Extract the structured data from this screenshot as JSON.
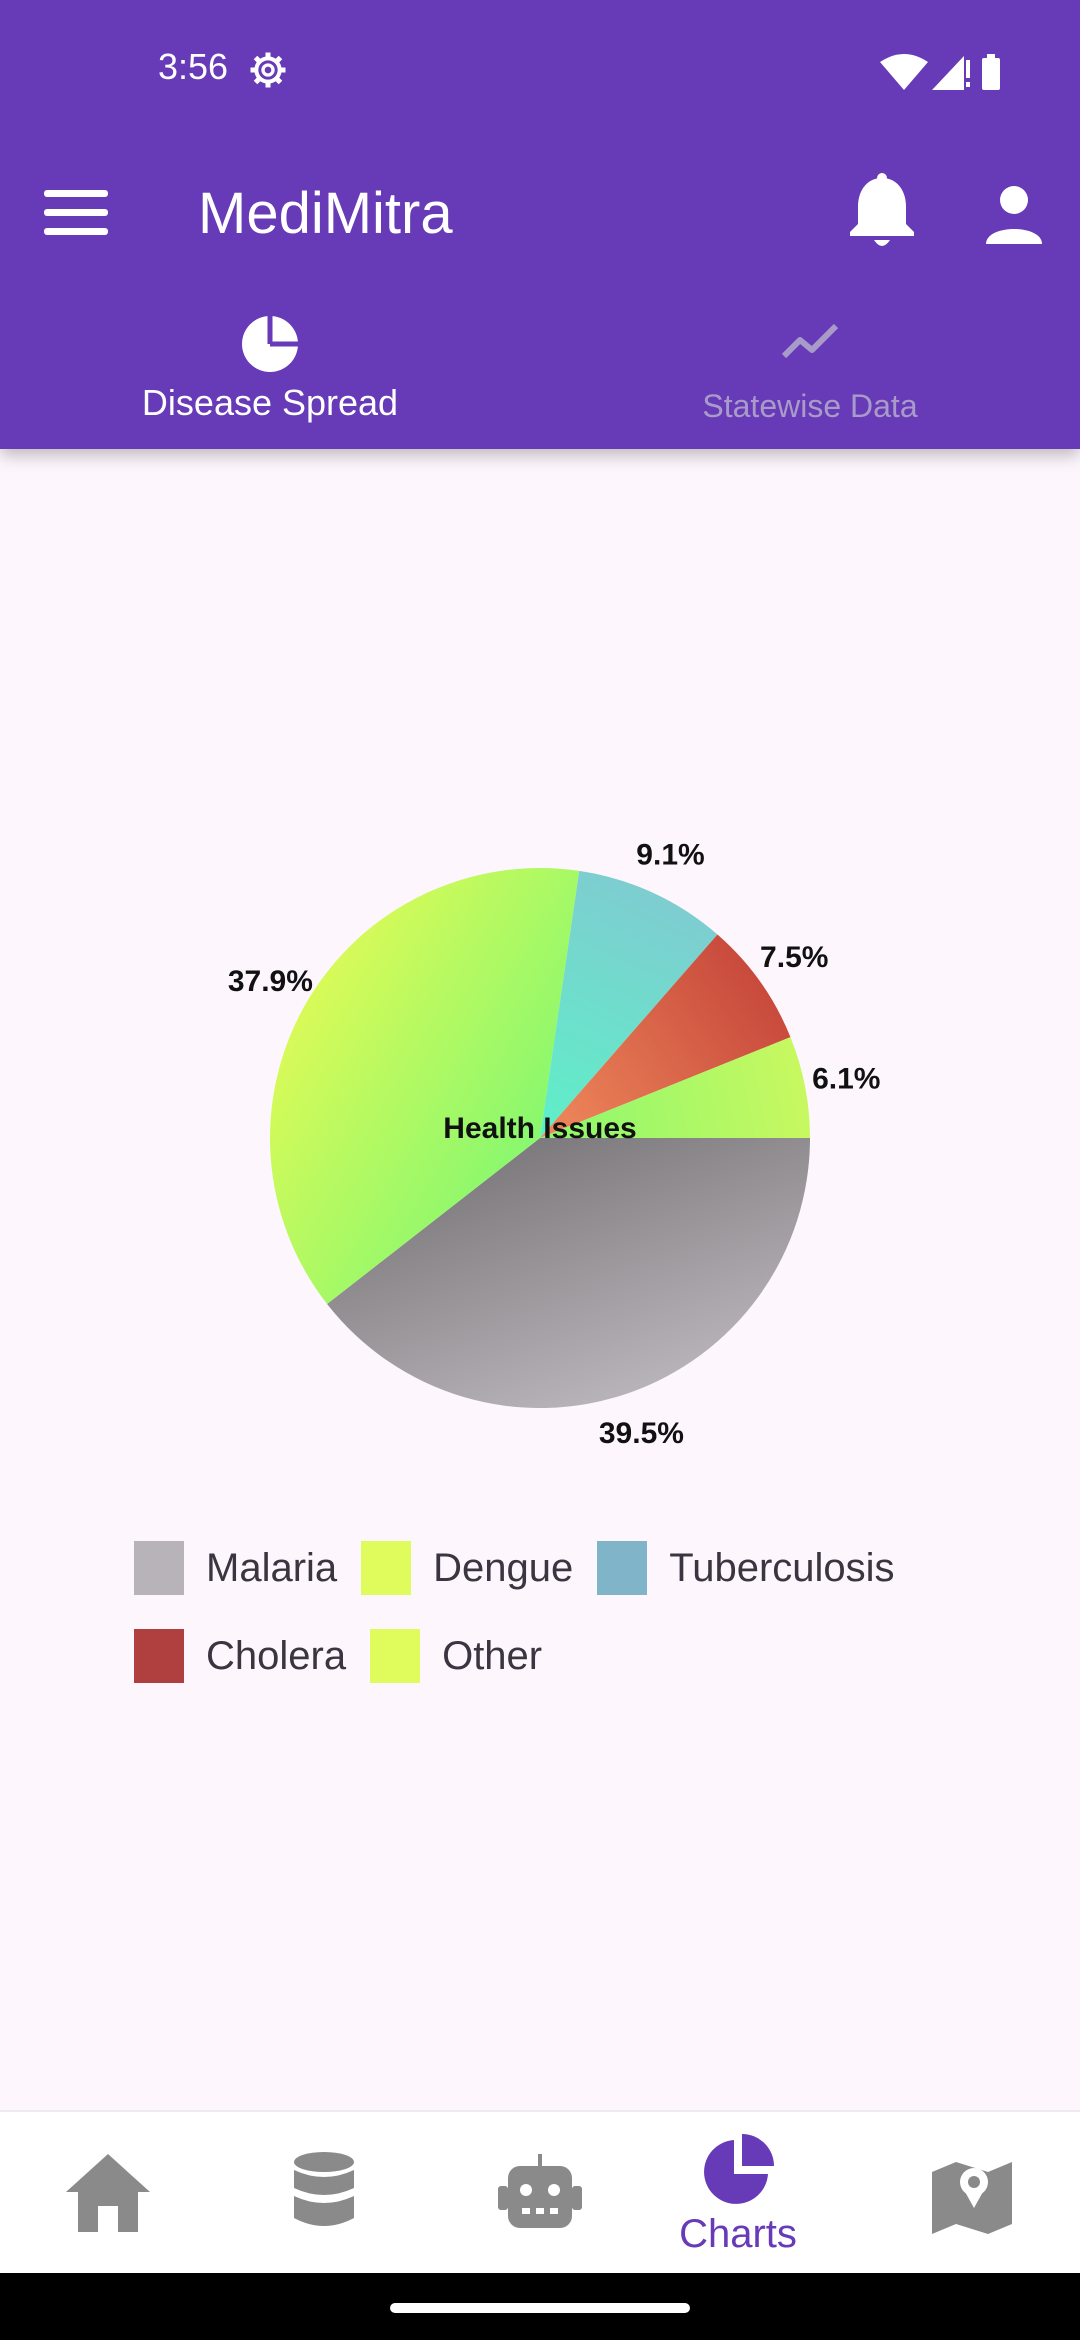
{
  "status_bar": {
    "time": "3:56"
  },
  "app_bar": {
    "title": "MediMitra"
  },
  "tabs": [
    {
      "label": "Disease Spread",
      "icon": "pie-chart-icon",
      "selected": true
    },
    {
      "label": "Statewise Data",
      "icon": "line-chart-icon",
      "selected": false
    }
  ],
  "chart_data": {
    "type": "pie",
    "center_label": "Health Issues",
    "slices": [
      {
        "value": 39.5,
        "label": "39.5%",
        "colors": [
          "#b8b3b8",
          "#7d7a7d"
        ]
      },
      {
        "value": 37.9,
        "label": "37.9%",
        "colors": [
          "#d8fa58",
          "#88f86e"
        ]
      },
      {
        "value": 9.1,
        "label": "9.1%",
        "colors": [
          "#7ecdd0",
          "#5ef0c8"
        ]
      },
      {
        "value": 7.5,
        "label": "7.5%",
        "colors": [
          "#c84a3c",
          "#f08a5c"
        ]
      },
      {
        "value": 6.1,
        "label": "6.1%",
        "colors": [
          "#c8f860",
          "#8af86e"
        ]
      }
    ],
    "legend": [
      {
        "label": "Malaria",
        "color": "#b8b3b8"
      },
      {
        "label": "Dengue",
        "color": "#e0fc5c"
      },
      {
        "label": "Tuberculosis",
        "color": "#80b4c8"
      },
      {
        "label": "Cholera",
        "color": "#b04040"
      },
      {
        "label": "Other",
        "color": "#e0fc5c"
      }
    ]
  },
  "bottom_nav": [
    {
      "icon": "home-icon",
      "label": ""
    },
    {
      "icon": "database-icon",
      "label": ""
    },
    {
      "icon": "robot-icon",
      "label": ""
    },
    {
      "icon": "pie-chart-icon",
      "label": "Charts",
      "selected": true
    },
    {
      "icon": "map-icon",
      "label": ""
    }
  ]
}
